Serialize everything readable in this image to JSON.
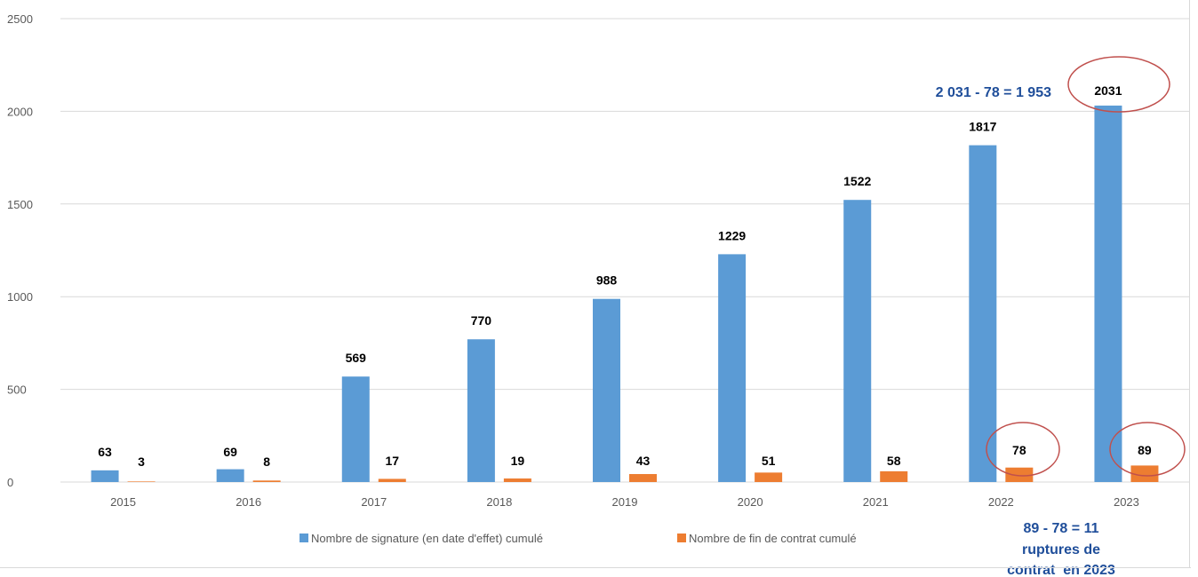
{
  "chart_data": {
    "type": "bar",
    "categories": [
      "2015",
      "2016",
      "2017",
      "2018",
      "2019",
      "2020",
      "2021",
      "2022",
      "2023"
    ],
    "series": [
      {
        "name": "Nombre de signature (en date d'effet) cumulé",
        "values": [
          63,
          69,
          569,
          770,
          988,
          1229,
          1522,
          1817,
          2031
        ],
        "color": "#5b9bd5"
      },
      {
        "name": "Nombre de fin de contrat cumulé",
        "values": [
          3,
          8,
          17,
          19,
          43,
          51,
          58,
          78,
          89
        ],
        "color": "#ed7d31"
      }
    ],
    "yticks": [
      "0",
      "500",
      "1000",
      "1500",
      "2000",
      "2500"
    ],
    "ylim": [
      0,
      2500
    ],
    "grid": true,
    "legend_position": "bottom",
    "annotations": {
      "signatures_calc": "2 031 - 78 = 1 953",
      "ruptures_lines": [
        "89 - 78 = 11",
        "ruptures de",
        "contrat  en 2023"
      ]
    },
    "circled": [
      "2023 signatures",
      "2022 fin de contrat",
      "2023 fin de contrat"
    ],
    "circle_color": "#c0504d",
    "annotation_color": "#1f4e9a"
  }
}
